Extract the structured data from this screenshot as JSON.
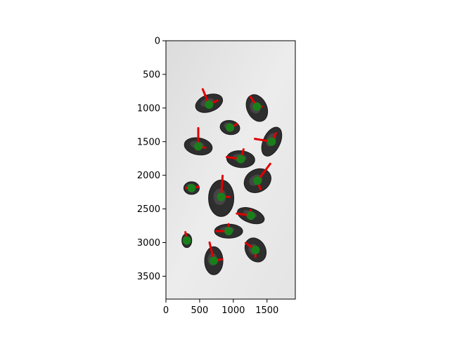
{
  "chart_data": {
    "type": "scatter",
    "title": "",
    "xlabel": "",
    "ylabel": "",
    "xlim": [
      0,
      1920
    ],
    "ylim": [
      3840,
      0
    ],
    "x_ticks": [
      0,
      500,
      1000,
      1500
    ],
    "y_ticks": [
      0,
      500,
      1000,
      1500,
      2000,
      2500,
      3000,
      3500
    ],
    "grid": false,
    "legend": "none",
    "colors": {
      "centroid": "#1a7f1a",
      "axis_vector": "#e00000",
      "background": "#e9e9e9",
      "seed": "#2e2e2e"
    },
    "series": [
      {
        "marker": "centroid",
        "points": [
          {
            "x": 640,
            "y": 950
          },
          {
            "x": 1350,
            "y": 980
          },
          {
            "x": 950,
            "y": 1290
          },
          {
            "x": 1570,
            "y": 1500
          },
          {
            "x": 480,
            "y": 1570
          },
          {
            "x": 1110,
            "y": 1760
          },
          {
            "x": 1360,
            "y": 2080
          },
          {
            "x": 380,
            "y": 2190
          },
          {
            "x": 820,
            "y": 2320
          },
          {
            "x": 1260,
            "y": 2600
          },
          {
            "x": 930,
            "y": 2830
          },
          {
            "x": 310,
            "y": 2970
          },
          {
            "x": 1330,
            "y": 3110
          },
          {
            "x": 710,
            "y": 3270
          }
        ]
      }
    ]
  }
}
